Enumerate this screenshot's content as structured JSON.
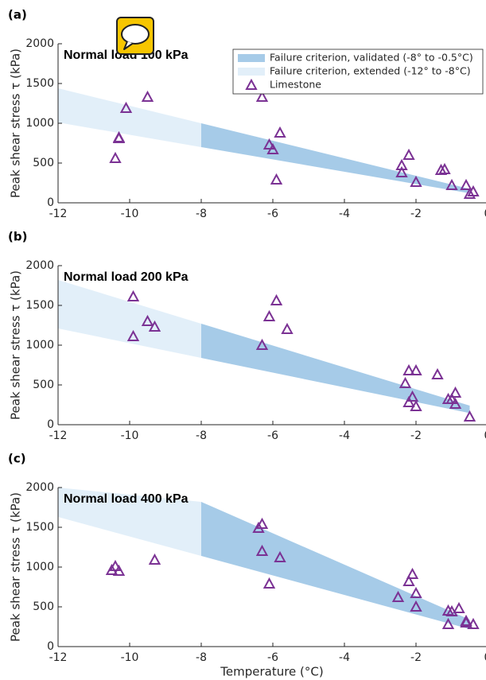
{
  "chart_data": [
    {
      "type": "scatter",
      "label": "(a)",
      "title": "Normal load 100 kPa",
      "ylabel": "Peak shear stress τ (kPa)",
      "xlim": [
        -12,
        0
      ],
      "xticks": [
        -12,
        -10,
        -8,
        -6,
        -4,
        -2,
        0
      ],
      "ylim": [
        0,
        2000
      ],
      "yticks": [
        0,
        500,
        1000,
        1500,
        2000
      ],
      "legend": "top right",
      "bands": [
        {
          "name": "Failure criterion, validated (-8° to -0.5°C)",
          "color": "#a6cbe8",
          "x": [
            -8,
            -0.5
          ],
          "upper": [
            1000,
            175
          ],
          "lower": [
            700,
            120
          ]
        },
        {
          "name": "Failure criterion, extended (-12° to -8°C)",
          "color": "#e2eff9",
          "x": [
            -12,
            -8
          ],
          "upper": [
            1440,
            1000
          ],
          "lower": [
            1010,
            700
          ]
        }
      ],
      "series": [
        {
          "name": "Limestone",
          "color": "#7b3294",
          "x": [
            -10.4,
            -10.3,
            -10.3,
            -10.1,
            -9.5,
            -6.5,
            -6.3,
            -6.1,
            -6,
            -5.9,
            -5.8,
            -2.4,
            -2.4,
            -2.2,
            -2,
            -1.3,
            -1.2,
            -1,
            -0.6,
            -0.5,
            -0.4
          ],
          "values": [
            560,
            820,
            810,
            1190,
            1330,
            1480,
            1330,
            730,
            670,
            290,
            880,
            470,
            380,
            600,
            260,
            410,
            420,
            220,
            220,
            110,
            140
          ]
        }
      ]
    },
    {
      "type": "scatter",
      "label": "(b)",
      "title": "Normal load 200 kPa",
      "ylabel": "Peak shear stress τ (kPa)",
      "xlim": [
        -12,
        0
      ],
      "xticks": [
        -12,
        -10,
        -8,
        -6,
        -4,
        -2,
        0
      ],
      "ylim": [
        0,
        2000
      ],
      "yticks": [
        0,
        500,
        1000,
        1500,
        2000
      ],
      "bands": [
        {
          "color": "#a6cbe8",
          "x": [
            -8,
            -0.5
          ],
          "upper": [
            1270,
            240
          ],
          "lower": [
            840,
            146
          ]
        },
        {
          "color": "#e2eff9",
          "x": [
            -12,
            -8
          ],
          "upper": [
            1820,
            1270
          ],
          "lower": [
            1210,
            840
          ]
        }
      ],
      "series": [
        {
          "color": "#7b3294",
          "x": [
            -9.9,
            -9.9,
            -9.5,
            -9.3,
            -6.3,
            -6.1,
            -5.9,
            -5.6,
            -2.3,
            -2.2,
            -2.2,
            -2.1,
            -2,
            -2,
            -1.4,
            -1.1,
            -1,
            -0.9,
            -0.9,
            -0.5
          ],
          "values": [
            1610,
            1110,
            1300,
            1230,
            1000,
            1360,
            1560,
            1200,
            520,
            680,
            280,
            350,
            680,
            230,
            630,
            320,
            320,
            400,
            260,
            100
          ]
        }
      ]
    },
    {
      "type": "scatter",
      "label": "(c)",
      "title": "Normal load 400 kPa",
      "ylabel": "Peak shear stress τ (kPa)",
      "xlabel": "Temperature (°C)",
      "xlim": [
        -12,
        0
      ],
      "xticks": [
        -12,
        -10,
        -8,
        -6,
        -4,
        -2,
        0
      ],
      "ylim": [
        0,
        2000
      ],
      "yticks": [
        0,
        500,
        1000,
        1500,
        2000
      ],
      "bands": [
        {
          "color": "#a6cbe8",
          "x": [
            -8,
            -0.5
          ],
          "upper": [
            1820,
            340
          ],
          "lower": [
            1140,
            220
          ]
        },
        {
          "color": "#e2eff9",
          "x": [
            -12,
            -8
          ],
          "upper": [
            2000,
            1820
          ],
          "lower": [
            1630,
            1140
          ]
        }
      ],
      "series": [
        {
          "color": "#7b3294",
          "x": [
            -10.5,
            -10.4,
            -10.3,
            -9.3,
            -6.4,
            -6.3,
            -6.3,
            -6.1,
            -5.8,
            -2.5,
            -2.2,
            -2.1,
            -2,
            -2,
            -1.1,
            -1.1,
            -1,
            -0.8,
            -0.6,
            -0.6,
            -0.4
          ],
          "values": [
            960,
            1010,
            950,
            1090,
            1490,
            1540,
            1200,
            790,
            1120,
            620,
            820,
            910,
            670,
            500,
            450,
            280,
            440,
            480,
            320,
            300,
            280
          ]
        }
      ]
    }
  ]
}
